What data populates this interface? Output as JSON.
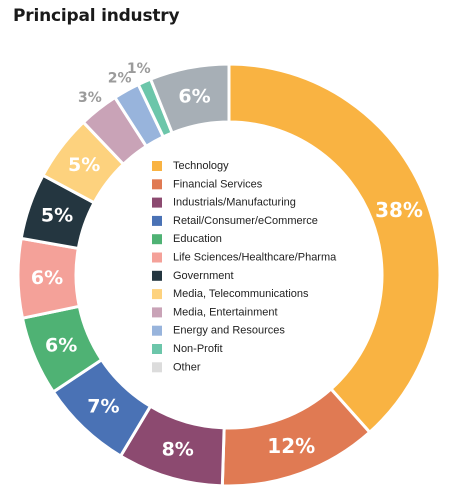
{
  "chart_data": {
    "type": "pie",
    "variant": "donut",
    "title": "Principal industry",
    "legend_placement": "center",
    "categories": [
      "Technology",
      "Financial Services",
      "Industrials/Manufacturing",
      "Retail/Consumer/eCommerce",
      "Education",
      "Life Sciences/Healthcare/Pharma",
      "Government",
      "Media, Telecommunications",
      "Media, Entertainment",
      "Energy and Resources",
      "Non-Profit",
      "Other"
    ],
    "values": [
      38,
      12,
      8,
      7,
      6,
      6,
      5,
      5,
      3,
      2,
      1,
      6
    ],
    "labels": [
      "38%",
      "12%",
      "8%",
      "7%",
      "6%",
      "6%",
      "5%",
      "5%",
      "3%",
      "2%",
      "1%",
      "6%"
    ],
    "colors": [
      "#F9B342",
      "#E07A53",
      "#8C4A70",
      "#4A72B5",
      "#4FB274",
      "#F4A199",
      "#243640",
      "#FDD27E",
      "#C9A3B7",
      "#98B4DC",
      "#6CC6AA",
      "#A7AFB6"
    ],
    "legend_colors": [
      "#F9B342",
      "#E07A53",
      "#8C4A70",
      "#4A72B5",
      "#4FB274",
      "#F4A199",
      "#243640",
      "#FDD27E",
      "#C9A3B7",
      "#98B4DC",
      "#6CC6AA",
      "#DCDCDC"
    ],
    "outside_label_color": "#9B9B9B",
    "inside_label_color": "#FFFFFF"
  }
}
